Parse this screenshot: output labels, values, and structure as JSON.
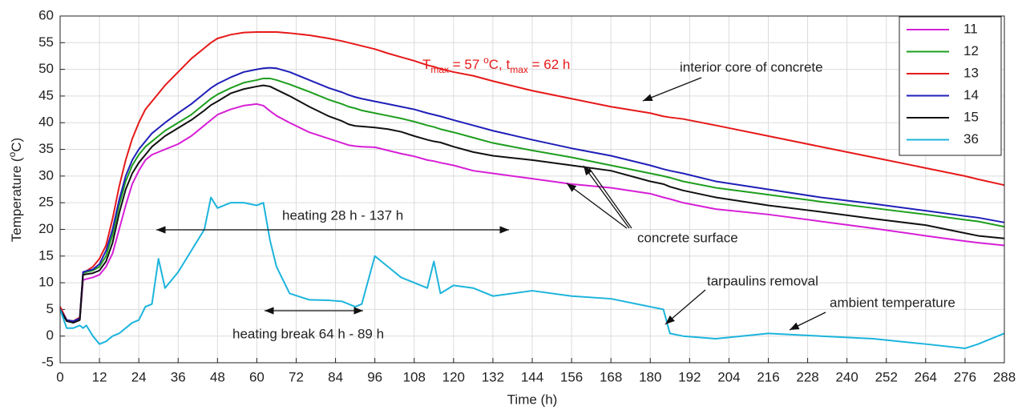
{
  "chart_data": {
    "type": "line",
    "xlabel": "Time (h)",
    "ylabel_parts": [
      "Temperature (",
      "o",
      "C)"
    ],
    "x": [
      0,
      2,
      4,
      6,
      7,
      8,
      10,
      12,
      14,
      16,
      18,
      20,
      22,
      24,
      26,
      28,
      30,
      32,
      36,
      40,
      44,
      46,
      48,
      52,
      56,
      60,
      62,
      64,
      66,
      70,
      76,
      82,
      86,
      88,
      90,
      92,
      96,
      100,
      104,
      108,
      112,
      114,
      116,
      120,
      126,
      132,
      144,
      156,
      168,
      180,
      184,
      186,
      190,
      200,
      216,
      232,
      248,
      264,
      276,
      280,
      288
    ],
    "series": [
      {
        "name": "11",
        "color": "#d61fd6",
        "values": [
          5.5,
          3,
          2.5,
          3,
          10.5,
          10.7,
          11,
          11.5,
          13,
          15.5,
          20,
          24.5,
          28.5,
          31,
          33,
          34,
          34.5,
          35,
          36,
          37.5,
          39.5,
          40.5,
          41.5,
          42.5,
          43.2,
          43.5,
          43.2,
          42.2,
          41.3,
          40,
          38.2,
          37,
          36.2,
          35.8,
          35.6,
          35.5,
          35.4,
          34.8,
          34.2,
          33.7,
          33,
          32.8,
          32.5,
          32,
          31,
          30.5,
          29.5,
          28.5,
          27.8,
          26.7,
          26,
          25.7,
          25,
          23.8,
          22.8,
          21.5,
          20.2,
          18.8,
          17.8,
          17.5,
          17
        ]
      },
      {
        "name": "12",
        "color": "#1e9e1e",
        "values": [
          5,
          3,
          2.7,
          3.2,
          11.8,
          12,
          12.3,
          13,
          15,
          19,
          24.5,
          29,
          32,
          34,
          35.5,
          36.5,
          37.5,
          38.5,
          40,
          41.5,
          43.5,
          44.5,
          45.3,
          46.5,
          47.5,
          48,
          48.3,
          48.3,
          48,
          47.2,
          45.8,
          44.3,
          43.5,
          43,
          42.7,
          42.3,
          41.8,
          41.3,
          40.8,
          40.2,
          39.5,
          39.2,
          38.8,
          38.2,
          37.2,
          36.2,
          34.8,
          33.5,
          32,
          30.5,
          30,
          29.7,
          29,
          27.8,
          26.5,
          25.2,
          24,
          22.8,
          21.8,
          21.5,
          20.5
        ]
      },
      {
        "name": "13",
        "color": "#e61919",
        "values": [
          5.5,
          3,
          2.8,
          3.5,
          12,
          12.2,
          13,
          14.5,
          17,
          22,
          28,
          33,
          37,
          40,
          42.5,
          44,
          45.5,
          47,
          49.5,
          52,
          54,
          55,
          55.8,
          56.5,
          56.9,
          57,
          57,
          57,
          57,
          56.8,
          56.4,
          55.8,
          55.3,
          55,
          54.7,
          54.4,
          53.8,
          53,
          52.3,
          51.6,
          50.8,
          50.5,
          50.1,
          49.5,
          48.8,
          47.8,
          46,
          44.5,
          43,
          41.8,
          41.2,
          41,
          40.7,
          39.5,
          37.5,
          35.5,
          33.5,
          31.5,
          30,
          29.4,
          28.3
        ]
      },
      {
        "name": "14",
        "color": "#1f1fb8",
        "values": [
          5,
          3,
          2.8,
          3.3,
          12,
          12.2,
          12.5,
          13.5,
          16,
          20,
          25.5,
          30,
          33,
          35,
          36.5,
          38,
          39,
          40,
          41.8,
          43.5,
          45.5,
          46.5,
          47.3,
          48.5,
          49.5,
          50,
          50.2,
          50.3,
          50.2,
          49.5,
          48,
          46.5,
          45.7,
          45.2,
          44.8,
          44.5,
          44,
          43.5,
          43,
          42.5,
          41.8,
          41.5,
          41.2,
          40.5,
          39.5,
          38.5,
          36.8,
          35.2,
          33.8,
          32,
          31.3,
          31,
          30.5,
          29,
          27.5,
          26,
          24.8,
          23.5,
          22.5,
          22.2,
          21.3
        ]
      },
      {
        "name": "15",
        "color": "#111111",
        "values": [
          5,
          2.8,
          2.5,
          3,
          11.5,
          11.6,
          11.8,
          12.3,
          14,
          17.5,
          23,
          27.5,
          30.5,
          32.5,
          34,
          35.5,
          36.5,
          37.5,
          39,
          40.5,
          42.3,
          43.3,
          44,
          45.5,
          46.3,
          46.8,
          47,
          46.8,
          46.2,
          45,
          43,
          41.2,
          40.3,
          39.7,
          39.4,
          39.3,
          39.1,
          38.8,
          38.3,
          37.5,
          36.8,
          36.5,
          36.3,
          35.5,
          34.5,
          33.8,
          33,
          32,
          31,
          29,
          28.5,
          28,
          27.3,
          26,
          24.5,
          23.3,
          22,
          20.8,
          19.3,
          18.8,
          18.3
        ]
      },
      {
        "name": "36",
        "color": "#1cb4dc",
        "values": [
          5,
          1.5,
          1.5,
          2,
          1.5,
          2,
          0,
          -1.5,
          -1,
          0,
          0.5,
          1.5,
          2.5,
          3,
          5.5,
          6,
          14.5,
          9,
          12,
          16,
          20,
          26,
          24,
          25,
          25,
          24.5,
          25,
          18,
          13,
          8,
          6.8,
          6.7,
          6.5,
          6,
          5.5,
          6,
          15,
          13,
          11,
          10,
          9,
          14,
          8,
          9.5,
          9,
          7.5,
          8.5,
          7.5,
          7,
          5.5,
          5,
          0.5,
          0,
          -0.5,
          0.5,
          0,
          -0.5,
          -1.5,
          -2.3,
          -1.5,
          0.5
        ]
      }
    ],
    "xlim": [
      0,
      288
    ],
    "xticks": [
      0,
      12,
      24,
      36,
      48,
      60,
      72,
      84,
      96,
      108,
      120,
      132,
      144,
      156,
      168,
      180,
      192,
      204,
      216,
      228,
      240,
      252,
      264,
      276,
      288
    ],
    "ylim": [
      -5,
      60
    ],
    "yticks": [
      -5,
      0,
      5,
      10,
      15,
      20,
      25,
      30,
      35,
      40,
      45,
      50,
      55,
      60
    ],
    "grid": true,
    "legend": "upper right",
    "annotations": {
      "tmax_parts": [
        "T",
        "max",
        " = 57 ",
        "o",
        "C, t",
        "max",
        " = 62 h"
      ],
      "core": "interior core of concrete",
      "surface": "concrete surface",
      "heating": "heating 28 h - 137 h",
      "heating_break": "heating break 64 h - 89 h",
      "tarpaulins": "tarpaulins removal",
      "ambient": "ambient temperature"
    }
  }
}
